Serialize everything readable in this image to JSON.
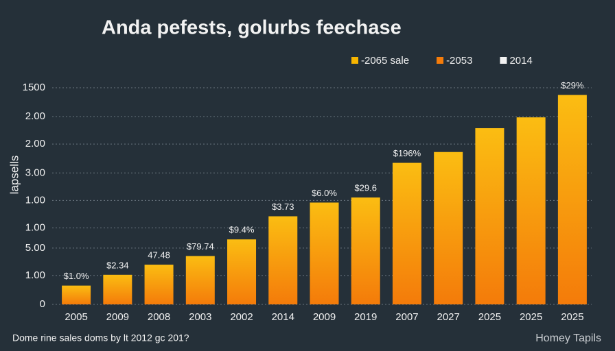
{
  "chart_data": {
    "type": "bar",
    "title": "Anda pefests, golurbs feechase",
    "y_label": "lapsells",
    "footnote": "Dome rine sales doms by lt 2012 gc 201?",
    "watermark": "Homey Tapils",
    "legend": [
      {
        "name": "-2065 sale",
        "color": "#f7b500"
      },
      {
        "name": "-2053",
        "color": "#f57c0a"
      },
      {
        "name": "2014",
        "color": "#f2f2f2"
      }
    ],
    "legend_position": "top-right",
    "categories": [
      "2005",
      "2009",
      "2008",
      "2003",
      "2002",
      "2014",
      "2009",
      "2019",
      "2007",
      "2027",
      "2025",
      "2025",
      "2025"
    ],
    "values": [
      130,
      205,
      275,
      335,
      450,
      610,
      705,
      740,
      980,
      1055,
      1220,
      1295,
      1450
    ],
    "value_labels": [
      "$1.0%",
      "$2.34",
      "47.48",
      "$79.74",
      "$9.4%",
      "$3.73",
      "$6.0%",
      "$29.6",
      "$196%",
      null,
      null,
      null,
      "$29%"
    ],
    "color": [
      "#fbbd12",
      "#f47b0a"
    ],
    "ylim": [
      0,
      1500
    ],
    "yticks": [
      0,
      {
        "value": 200,
        "label": "1.00"
      },
      {
        "value": 390,
        "label": "5.00"
      },
      {
        "value": 530,
        "label": "1.00"
      },
      {
        "value": 720,
        "label": "1.00"
      },
      {
        "value": 910,
        "label": "3.00"
      },
      {
        "value": 1110,
        "label": "2.00"
      },
      {
        "value": 1300,
        "label": "2.00"
      },
      1500
    ],
    "grid": true
  }
}
